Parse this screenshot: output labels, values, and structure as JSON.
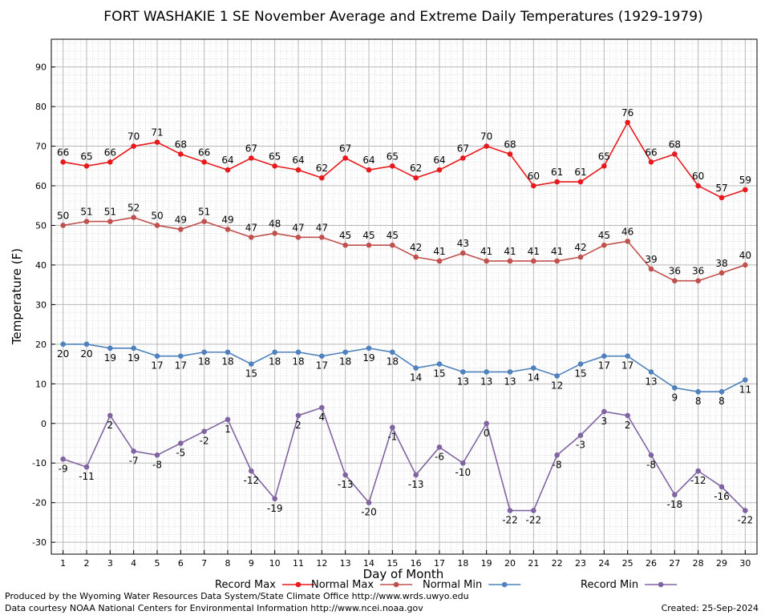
{
  "chart_data": {
    "type": "line",
    "title": "FORT WASHAKIE 1 SE November Average and Extreme Daily Temperatures (1929-1979)",
    "xlabel": "Day of Month",
    "ylabel": "Temperature (F)",
    "x": [
      1,
      2,
      3,
      4,
      5,
      6,
      7,
      8,
      9,
      10,
      11,
      12,
      13,
      14,
      15,
      16,
      17,
      18,
      19,
      20,
      21,
      22,
      23,
      24,
      25,
      26,
      27,
      28,
      29,
      30
    ],
    "xlim": [
      0.5,
      30.5
    ],
    "ylim": [
      -33,
      97
    ],
    "yticks": [
      -30,
      -20,
      -10,
      0,
      10,
      20,
      30,
      40,
      50,
      60,
      70,
      80,
      90
    ],
    "grid": true,
    "legend_position": "bottom",
    "series": [
      {
        "name": "Record Max",
        "color": "#e8191c",
        "label_position": "above",
        "values": [
          66,
          65,
          66,
          70,
          71,
          68,
          66,
          64,
          67,
          65,
          64,
          62,
          67,
          64,
          65,
          62,
          64,
          67,
          70,
          68,
          60,
          61,
          61,
          65,
          76,
          66,
          68,
          60,
          57,
          59
        ]
      },
      {
        "name": "Normal Max",
        "color": "#c0504d",
        "label_position": "above",
        "values": [
          50,
          51,
          51,
          52,
          50,
          49,
          51,
          49,
          47,
          48,
          47,
          47,
          45,
          45,
          45,
          42,
          41,
          43,
          41,
          41,
          41,
          41,
          42,
          45,
          46,
          39,
          36,
          36,
          38,
          40
        ]
      },
      {
        "name": "Normal Min",
        "color": "#4f81bd",
        "label_position": "below",
        "values": [
          20,
          20,
          19,
          19,
          17,
          17,
          18,
          18,
          15,
          18,
          18,
          17,
          18,
          19,
          18,
          14,
          15,
          13,
          13,
          13,
          14,
          12,
          15,
          17,
          17,
          13,
          9,
          8,
          8,
          11
        ]
      },
      {
        "name": "Record Min",
        "color": "#8064a2",
        "label_position": "below",
        "values": [
          -9,
          -11,
          2,
          -7,
          -8,
          -5,
          -2,
          1,
          -12,
          -19,
          2,
          4,
          -13,
          -20,
          -1,
          -13,
          -6,
          -10,
          0,
          -22,
          -22,
          -8,
          -3,
          3,
          2,
          -8,
          -18,
          -12,
          -16,
          -22
        ]
      }
    ]
  },
  "footer": {
    "produced_by": "Produced by the Wyoming Water Resources Data System/State Climate Office http://www.wrds.uwyo.edu",
    "data_courtesy": "Data courtesy NOAA National Centers for Environmental Information http://www.ncei.noaa.gov",
    "created": "Created:  25-Sep-2024"
  }
}
